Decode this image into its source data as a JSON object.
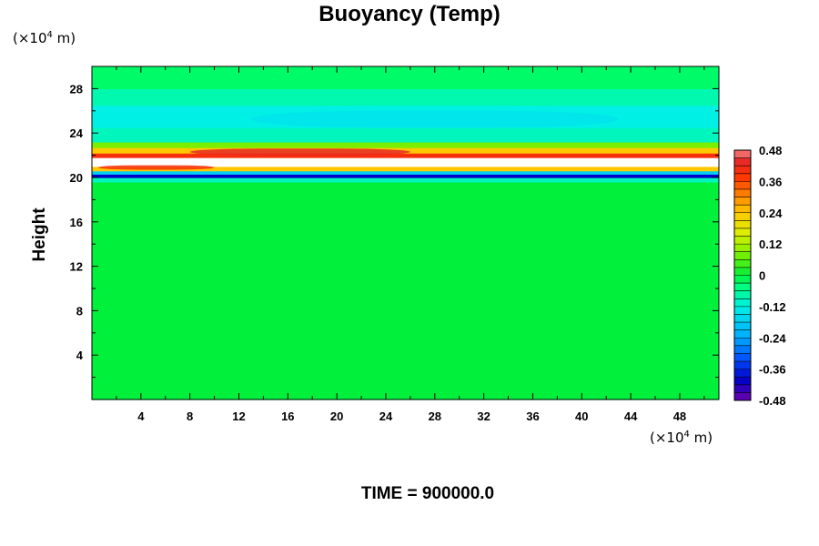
{
  "chart_data": {
    "type": "heatmap",
    "title": "Buoyancy (Temp)",
    "ylabel": "Height",
    "xlabel": "",
    "y_unit": {
      "prefix": "(×10",
      "exp": "4",
      "suffix": " m)"
    },
    "x_unit": {
      "prefix": "(×10",
      "exp": "4",
      "suffix": " m)"
    },
    "xlim": [
      0,
      51.2
    ],
    "ylim": [
      0,
      30
    ],
    "x_ticks": [
      "4",
      "8",
      "12",
      "16",
      "20",
      "24",
      "28",
      "32",
      "36",
      "40",
      "44",
      "48"
    ],
    "y_ticks": [
      "4",
      "8",
      "12",
      "16",
      "20",
      "24",
      "28"
    ],
    "colorbar": {
      "min": -0.48,
      "max": 0.48,
      "levels": 32,
      "tick_labels": [
        "0.48",
        "0.36",
        "0.24",
        "0.12",
        "0",
        "-0.12",
        "-0.24",
        "-0.36",
        "-0.48"
      ],
      "tick_values": [
        0.48,
        0.36,
        0.24,
        0.12,
        0,
        -0.12,
        -0.24,
        -0.36,
        -0.48
      ]
    },
    "field_bands": [
      {
        "y_from": 0,
        "y_to": 19.6,
        "value": 0.0
      },
      {
        "y_from": 19.6,
        "y_to": 20.0,
        "value": -0.09
      },
      {
        "y_from": 20.0,
        "y_to": 20.3,
        "value": -0.4
      },
      {
        "y_from": 20.3,
        "y_to": 20.6,
        "value": -0.18
      },
      {
        "y_from": 20.6,
        "y_to": 21.0,
        "value": 0.24
      },
      {
        "y_from": 21.0,
        "y_to": 21.8,
        "value": 0.7
      },
      {
        "y_from": 21.8,
        "y_to": 22.2,
        "value": 0.4
      },
      {
        "y_from": 22.2,
        "y_to": 22.7,
        "value": 0.24
      },
      {
        "y_from": 22.7,
        "y_to": 23.2,
        "value": 0.08
      },
      {
        "y_from": 23.2,
        "y_to": 24.5,
        "value": -0.09
      },
      {
        "y_from": 24.5,
        "y_to": 26.5,
        "value": -0.12
      },
      {
        "y_from": 26.5,
        "y_to": 28.0,
        "value": -0.08
      },
      {
        "y_from": 28.0,
        "y_to": 30.0,
        "value": -0.03
      }
    ],
    "field_patches": [
      {
        "x_from": 0.5,
        "x_to": 10,
        "y_from": 20.7,
        "y_to": 21.1,
        "value": 0.4
      },
      {
        "x_from": 8,
        "x_to": 26,
        "y_from": 22.0,
        "y_to": 22.6,
        "value": 0.44
      },
      {
        "x_from": 13,
        "x_to": 43,
        "y_from": 24.5,
        "y_to": 26.0,
        "value": -0.14
      }
    ]
  },
  "footer": {
    "time_label": "TIME = 900000.0"
  }
}
